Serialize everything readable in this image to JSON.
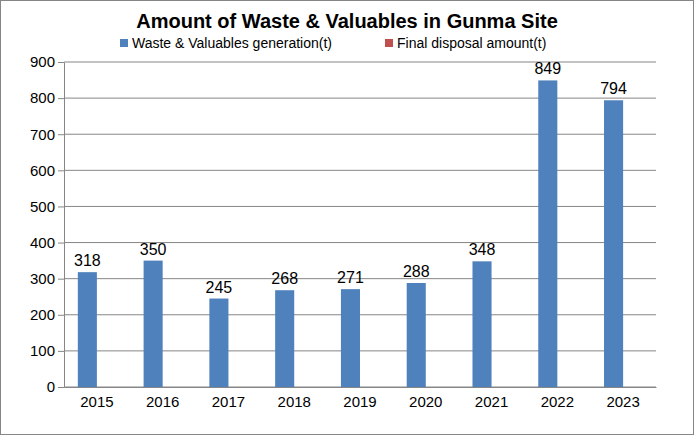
{
  "chart_data": {
    "type": "bar",
    "title": "Amount of Waste & Valuables in Gunma Site",
    "categories": [
      "2015",
      "2016",
      "2017",
      "2018",
      "2019",
      "2020",
      "2021",
      "2022",
      "2023"
    ],
    "series": [
      {
        "name": "Waste & Valuables generation(t)",
        "color": "#4f81bd",
        "data_labels": true,
        "values": [
          318,
          350,
          245,
          268,
          271,
          288,
          348,
          849,
          794
        ]
      },
      {
        "name": "Final disposal amount(t)",
        "color": "#c0504d",
        "data_labels": false,
        "values": [
          0,
          0,
          0,
          0,
          0,
          0,
          0,
          0,
          0
        ]
      }
    ],
    "ylim": [
      0,
      900
    ],
    "yticks": [
      0,
      100,
      200,
      300,
      400,
      500,
      600,
      700,
      800,
      900
    ],
    "grid": true,
    "legend": "top"
  }
}
